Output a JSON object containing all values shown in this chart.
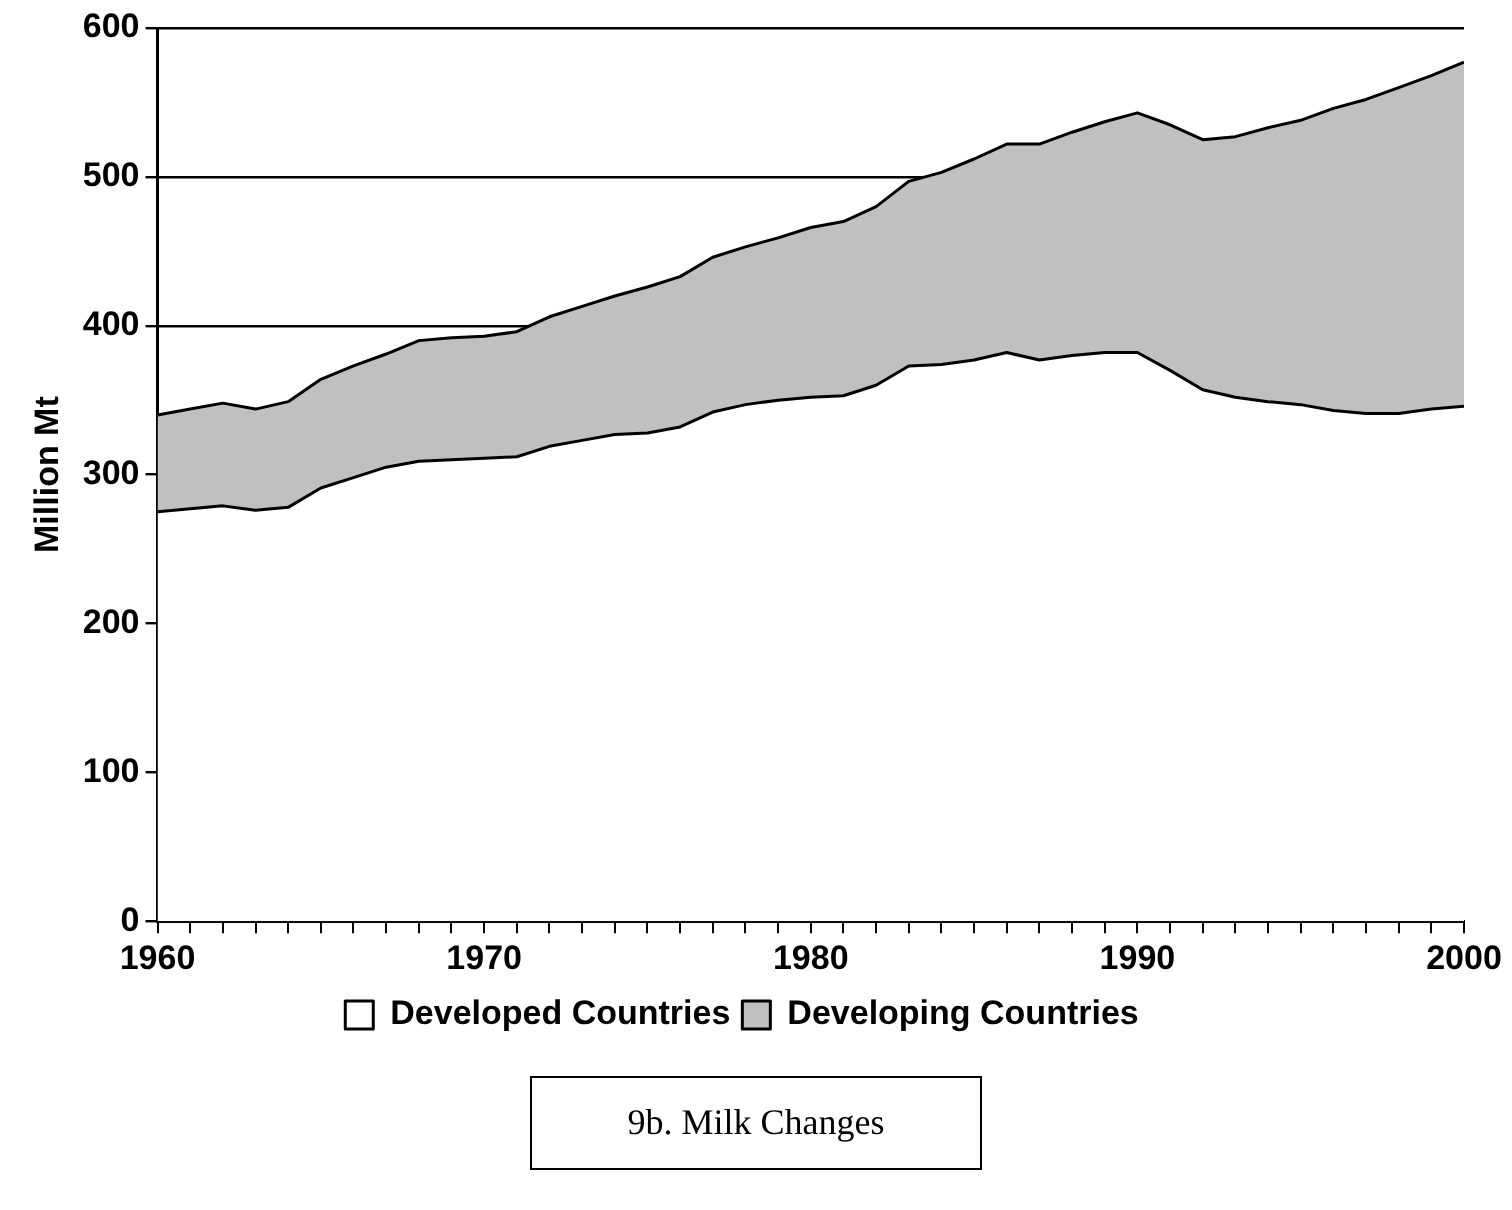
{
  "chart_data": {
    "type": "area",
    "stacked": true,
    "ylabel": "Million Mt",
    "x": [
      1960,
      1961,
      1962,
      1963,
      1964,
      1965,
      1966,
      1967,
      1968,
      1969,
      1970,
      1971,
      1972,
      1973,
      1974,
      1975,
      1976,
      1977,
      1978,
      1979,
      1980,
      1981,
      1982,
      1983,
      1984,
      1985,
      1986,
      1987,
      1988,
      1989,
      1990,
      1991,
      1992,
      1993,
      1994,
      1995,
      1996,
      1997,
      1998,
      1999,
      2000
    ],
    "series": [
      {
        "name": "Developed Countries",
        "color": "#ffffff",
        "values": [
          275,
          277,
          279,
          276,
          278,
          291,
          298,
          305,
          309,
          310,
          311,
          312,
          319,
          323,
          327,
          328,
          332,
          342,
          347,
          350,
          352,
          353,
          360,
          373,
          374,
          377,
          382,
          377,
          380,
          382,
          382,
          370,
          357,
          352,
          349,
          347,
          343,
          341,
          341,
          344,
          346
        ]
      },
      {
        "name": "Developing Countries",
        "color": "#c0c0c0",
        "values": [
          65,
          67,
          69,
          68,
          71,
          73,
          75,
          76,
          81,
          82,
          82,
          84,
          87,
          90,
          93,
          98,
          101,
          104,
          106,
          109,
          114,
          117,
          120,
          124,
          129,
          135,
          140,
          145,
          150,
          155,
          161,
          165,
          168,
          175,
          184,
          191,
          203,
          211,
          219,
          224,
          231
        ]
      }
    ],
    "xlim": [
      1960,
      2000
    ],
    "xticks": [
      1960,
      {
        "value": 1961,
        "label": null
      },
      {
        "value": 1962,
        "label": null
      },
      {
        "value": 1963,
        "label": null
      },
      {
        "value": 1964,
        "label": null
      },
      {
        "value": 1965,
        "label": null
      },
      {
        "value": 1966,
        "label": null
      },
      {
        "value": 1967,
        "label": null
      },
      {
        "value": 1968,
        "label": null
      },
      {
        "value": 1969,
        "label": null
      },
      1970,
      {
        "value": 1971,
        "label": null
      },
      {
        "value": 1972,
        "label": null
      },
      {
        "value": 1973,
        "label": null
      },
      {
        "value": 1974,
        "label": null
      },
      {
        "value": 1975,
        "label": null
      },
      {
        "value": 1976,
        "label": null
      },
      {
        "value": 1977,
        "label": null
      },
      {
        "value": 1978,
        "label": null
      },
      {
        "value": 1979,
        "label": null
      },
      1980,
      {
        "value": 1981,
        "label": null
      },
      {
        "value": 1982,
        "label": null
      },
      {
        "value": 1983,
        "label": null
      },
      {
        "value": 1984,
        "label": null
      },
      {
        "value": 1985,
        "label": null
      },
      {
        "value": 1986,
        "label": null
      },
      {
        "value": 1987,
        "label": null
      },
      {
        "value": 1988,
        "label": null
      },
      {
        "value": 1989,
        "label": null
      },
      1990,
      {
        "value": 1991,
        "label": null
      },
      {
        "value": 1992,
        "label": null
      },
      {
        "value": 1993,
        "label": null
      },
      {
        "value": 1994,
        "label": null
      },
      {
        "value": 1995,
        "label": null
      },
      {
        "value": 1996,
        "label": null
      },
      {
        "value": 1997,
        "label": null
      },
      {
        "value": 1998,
        "label": null
      },
      {
        "value": 1999,
        "label": null
      },
      2000
    ],
    "ylim": [
      0,
      600
    ],
    "yticks": [
      0,
      100,
      200,
      300,
      400,
      500,
      600
    ],
    "grid": "y",
    "legend": "bottom",
    "marker": "none",
    "annotations": [
      "9b. Milk Changes"
    ]
  }
}
